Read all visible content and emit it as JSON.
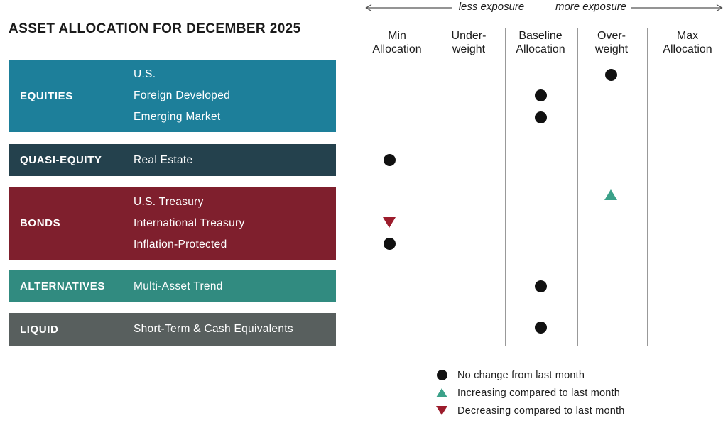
{
  "title": "ASSET ALLOCATION FOR DECEMBER 2025",
  "axis": {
    "less_label": "less exposure",
    "more_label": "more exposure"
  },
  "columns": [
    {
      "id": "min",
      "line1": "Min",
      "line2": "Allocation"
    },
    {
      "id": "under",
      "line1": "Under-",
      "line2": "weight"
    },
    {
      "id": "baseline",
      "line1": "Baseline",
      "line2": "Allocation"
    },
    {
      "id": "over",
      "line1": "Over-",
      "line2": "weight"
    },
    {
      "id": "max",
      "line1": "Max",
      "line2": "Allocation"
    }
  ],
  "categories": [
    {
      "name": "EQUITIES",
      "color": "#1d7f9a",
      "assets": [
        {
          "name": "U.S.",
          "column": "over",
          "change": "no-change"
        },
        {
          "name": "Foreign Developed",
          "column": "baseline",
          "change": "no-change"
        },
        {
          "name": "Emerging Market",
          "column": "baseline",
          "change": "no-change"
        }
      ]
    },
    {
      "name": "QUASI-EQUITY",
      "color": "#24414d",
      "assets": [
        {
          "name": "Real Estate",
          "column": "min",
          "change": "no-change"
        }
      ]
    },
    {
      "name": "BONDS",
      "color": "#7f1f2d",
      "assets": [
        {
          "name": "U.S. Treasury",
          "column": "over",
          "change": "increasing"
        },
        {
          "name": "International Treasury",
          "column": "min",
          "change": "decreasing"
        },
        {
          "name": "Inflation-Protected",
          "column": "min",
          "change": "no-change"
        }
      ]
    },
    {
      "name": "ALTERNATIVES",
      "color": "#318b80",
      "assets": [
        {
          "name": "Multi-Asset Trend",
          "column": "baseline",
          "change": "no-change"
        }
      ]
    },
    {
      "name": "LIQUID",
      "color": "#585f5e",
      "assets": [
        {
          "name": "Short-Term & Cash Equivalents",
          "column": "baseline",
          "change": "no-change"
        }
      ]
    }
  ],
  "marker_colors": {
    "no_change": "#111111",
    "increasing": "#3ba189",
    "decreasing": "#9c1c2c"
  },
  "legend": [
    {
      "type": "no-change",
      "label": "No change from last month"
    },
    {
      "type": "increasing",
      "label": "Increasing compared to last month"
    },
    {
      "type": "decreasing",
      "label": "Decreasing compared to last month"
    }
  ],
  "chart_data": {
    "type": "scatter",
    "title": "ASSET ALLOCATION FOR DECEMBER 2025",
    "x_categories": [
      "Min Allocation",
      "Under-weight",
      "Baseline Allocation",
      "Over-weight",
      "Max Allocation"
    ],
    "axis_annotations": [
      "less exposure",
      "more exposure"
    ],
    "rows": [
      {
        "category": "EQUITIES",
        "asset": "U.S.",
        "allocation": "Over-weight",
        "change": "No change from last month"
      },
      {
        "category": "EQUITIES",
        "asset": "Foreign Developed",
        "allocation": "Baseline Allocation",
        "change": "No change from last month"
      },
      {
        "category": "EQUITIES",
        "asset": "Emerging Market",
        "allocation": "Baseline Allocation",
        "change": "No change from last month"
      },
      {
        "category": "QUASI-EQUITY",
        "asset": "Real Estate",
        "allocation": "Min Allocation",
        "change": "No change from last month"
      },
      {
        "category": "BONDS",
        "asset": "U.S. Treasury",
        "allocation": "Over-weight",
        "change": "Increasing compared to last month"
      },
      {
        "category": "BONDS",
        "asset": "International Treasury",
        "allocation": "Min Allocation",
        "change": "Decreasing compared to last month"
      },
      {
        "category": "BONDS",
        "asset": "Inflation-Protected",
        "allocation": "Min Allocation",
        "change": "No change from last month"
      },
      {
        "category": "ALTERNATIVES",
        "asset": "Multi-Asset Trend",
        "allocation": "Baseline Allocation",
        "change": "No change from last month"
      },
      {
        "category": "LIQUID",
        "asset": "Short-Term & Cash Equivalents",
        "allocation": "Baseline Allocation",
        "change": "No change from last month"
      }
    ],
    "legend_position": "bottom"
  }
}
